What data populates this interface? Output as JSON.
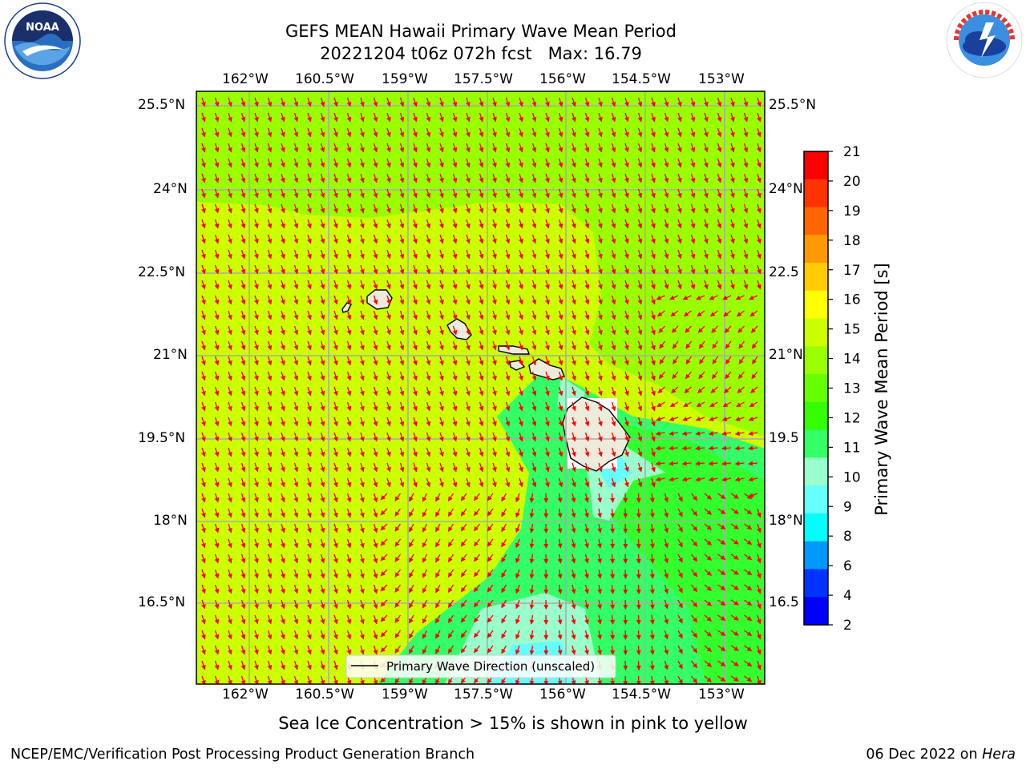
{
  "header": {
    "title_line1": "GEFS MEAN Hawaii Primary Wave Mean Period",
    "title_line2": "20221204 t06z 072h fcst   Max: 16.79"
  },
  "logos": {
    "noaa_text": "NOAA",
    "noaa_ring_text": "NATIONAL OCEANIC AND ATMOSPHERIC ADMINISTRATION · U.S. DEPARTMENT OF COMMERCE",
    "nws_ring_text": "NATIONAL WEATHER SERVICE"
  },
  "map": {
    "lon_labels": [
      "162°W",
      "160.5°W",
      "159°W",
      "157.5°W",
      "156°W",
      "154.5°W",
      "153°W"
    ],
    "lat_labels": [
      "25.5°N",
      "24°N",
      "22.5°N",
      "21°N",
      "19.5°N",
      "18°N",
      "16.5°N"
    ],
    "right_lat_labels": [
      "25.5°N",
      "24°N",
      "22.5",
      "21°N",
      "19.5",
      "18°N",
      "16.5"
    ],
    "legend_label": "Primary Wave Direction (unscaled)",
    "vector_color": "#ff0000",
    "land_color": "#efebdc",
    "grid_color": "#aaaaaa"
  },
  "colorbar": {
    "label": "Primary Wave Mean Period [s]",
    "ticks": [
      "21",
      "20",
      "19",
      "18",
      "17",
      "16",
      "15",
      "14",
      "13",
      "12",
      "11",
      "10",
      "9",
      "8",
      "6",
      "4",
      "2"
    ],
    "colors": [
      "#ff0000",
      "#ff3300",
      "#ff6600",
      "#ff9900",
      "#ffcc00",
      "#ffff00",
      "#ccff00",
      "#99ff00",
      "#66ff00",
      "#33ff00",
      "#33ff66",
      "#99ffcc",
      "#66ffff",
      "#00ffff",
      "#0099ff",
      "#0033ff",
      "#0000ff"
    ]
  },
  "caption": "Sea Ice Concentration > 15% is shown in pink to yellow",
  "footer": {
    "left": "NCEP/EMC/Verification Post Processing Product Generation Branch",
    "date": "06 Dec 2022 on ",
    "machine": "Hera"
  }
}
